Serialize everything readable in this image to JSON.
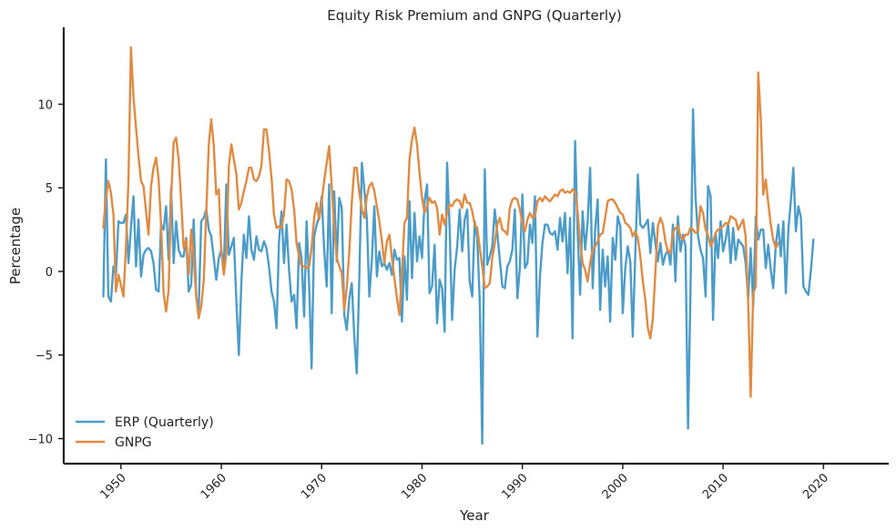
{
  "chart_data": {
    "type": "line",
    "title": "Equity Risk Premium and GNPG (Quarterly)",
    "xlabel": "Year",
    "ylabel": "Percentage",
    "xlim": [
      1944.3,
      2026.5
    ],
    "ylim": [
      -11.5,
      14.6
    ],
    "x_ticks": [
      1950,
      1960,
      1970,
      1980,
      1990,
      2000,
      2010,
      2020
    ],
    "y_ticks": [
      -10,
      -5,
      0,
      5,
      10
    ],
    "grid": false,
    "legend_position": "lower-left",
    "series": [
      {
        "name": "ERP (Quarterly)",
        "color": "#4c9cc9",
        "x_start": 1948.25,
        "x_step": 0.25,
        "values": [
          -1.5,
          6.7,
          -1.5,
          -1.8,
          0.3,
          -0.2,
          3,
          2.9,
          2.9,
          3.4,
          0.5,
          2.6,
          4.5,
          0.3,
          3.1,
          -0.3,
          1,
          1.3,
          1.4,
          1.2,
          0.5,
          -1.1,
          -1.2,
          2.8,
          2.5,
          3.9,
          0.7,
          5,
          0.5,
          3,
          1.3,
          0.9,
          0.9,
          2,
          -1.2,
          -0.8,
          3.1,
          -1.5,
          -2.3,
          3,
          3.2,
          3.7,
          2.5,
          2.1,
          0.8,
          -0.5,
          0.8,
          1.3,
          0.2,
          5.2,
          1,
          1.5,
          2,
          -1.8,
          -5,
          -0.6,
          2.2,
          0.8,
          3.3,
          1.3,
          0.7,
          2.1,
          1.3,
          1.2,
          1.8,
          1.4,
          0.3,
          -1.2,
          -1.8,
          -3.4,
          1.8,
          3.6,
          0.5,
          2.8,
          0.1,
          -1.8,
          -1.4,
          -3.4,
          1.7,
          0.8,
          -2.7,
          3,
          -0.8,
          -5.8,
          2.1,
          2.8,
          3.3,
          4.5,
          1.3,
          -0.9,
          5.2,
          -2.5,
          4.8,
          0.6,
          4.4,
          3.8,
          -2.6,
          -3.5,
          -1.6,
          -0.7,
          -3.9,
          -6.1,
          -0.4,
          6.5,
          4.9,
          3.1,
          -1.5,
          0.7,
          3.9,
          -0.3,
          1.2,
          0.3,
          0.5,
          0.1,
          0.5,
          -0.2,
          1.3,
          0.7,
          0.8,
          -3,
          0.9,
          -1.7,
          4.2,
          -0.4,
          3.5,
          0.6,
          2.1,
          0.8,
          4.2,
          5.2,
          -1.3,
          -0.9,
          1.6,
          -3.1,
          -0.5,
          -1,
          -3.6,
          6.5,
          2.6,
          -2.9,
          0.1,
          1.5,
          3.7,
          1.2,
          3.1,
          3.7,
          -0.6,
          -1.5,
          3,
          2,
          -1.8,
          -10.3,
          6.1,
          0.4,
          0.9,
          1.5,
          3.7,
          2.3,
          0.7,
          -0.9,
          -1,
          0.3,
          0.6,
          1.3,
          3.7,
          -1.6,
          0.2,
          4.6,
          0.2,
          0.5,
          2.8,
          1.7,
          4.5,
          -3.9,
          -0.3,
          1.7,
          2.8,
          2.8,
          2.3,
          2.2,
          2.4,
          1.3,
          3.2,
          1.8,
          3.5,
          -0.1,
          3.2,
          -4,
          7.8,
          2.5,
          -1.4,
          3.6,
          1.3,
          2.9,
          6.2,
          -1,
          2.5,
          4.3,
          -2.3,
          1.3,
          -0.9,
          0.9,
          -3,
          2,
          0.7,
          3.3,
          2.7,
          -2.5,
          0.2,
          1.5,
          0.6,
          -3.9,
          1.1,
          5.8,
          2.8,
          2.6,
          2.8,
          3.1,
          1.1,
          2.9,
          1.7,
          0.6,
          1.7,
          0.4,
          1,
          1.3,
          0.4,
          2.8,
          -0.6,
          3.3,
          1.2,
          2.2,
          1.5,
          -9.4,
          -1.2,
          9.7,
          4.5,
          2.1,
          1.3,
          0.8,
          -1.5,
          5.1,
          4.5,
          -2.9,
          2.3,
          0.8,
          3,
          1.2,
          1.9,
          2.9,
          0.5,
          2.6,
          0.7,
          1.9,
          1.7,
          1.5,
          0.5,
          -1.6,
          1.4,
          -2.1,
          3.3,
          1.9,
          2.5,
          2.5,
          0.2,
          1.6,
          0.1,
          -1,
          1.6,
          2.8,
          0.9,
          3,
          -1.3,
          2.5,
          4.2,
          6.2,
          2.4,
          3.9,
          3.2,
          -0.9,
          -1.2,
          -1.4,
          0.1,
          1.9
        ]
      },
      {
        "name": "GNPG",
        "color": "#e08a42",
        "x_start": 1948.25,
        "x_step": 0.25,
        "values": [
          2.6,
          4.4,
          5.4,
          4.7,
          3.4,
          -1.2,
          -0.2,
          -0.8,
          -1.5,
          1.4,
          5.5,
          13.4,
          10.4,
          8.6,
          6.9,
          5.4,
          5.1,
          3.6,
          2.2,
          5.1,
          6.2,
          6.8,
          5.5,
          2.8,
          -1.3,
          -2.4,
          -1.1,
          4.4,
          7.7,
          8,
          6.7,
          4.2,
          1.4,
          1.9,
          -0.2,
          2.5,
          0.8,
          -1.5,
          -2.8,
          -2.1,
          -0.5,
          3.5,
          7.6,
          9.1,
          7.5,
          4.6,
          4.9,
          1.2,
          -0.2,
          1.1,
          6.3,
          7.6,
          6.7,
          5.8,
          3.7,
          4.1,
          4.8,
          5.4,
          6.2,
          6.2,
          5.5,
          5.4,
          5.7,
          6.3,
          8.5,
          8.5,
          7.2,
          5.6,
          3.4,
          2.6,
          2.7,
          2.6,
          3.4,
          5.5,
          5.4,
          4.9,
          3.7,
          1.7,
          0.9,
          0.3,
          0.3,
          0.2,
          0.3,
          1.4,
          3.2,
          4.1,
          3.1,
          4.2,
          5.4,
          6.5,
          7.5,
          5.1,
          2.7,
          0.8,
          0.3,
          -0.1,
          -2.3,
          -1,
          1.2,
          4.1,
          6.2,
          6.2,
          4.7,
          3.7,
          3.2,
          4.5,
          5.1,
          5.3,
          4.8,
          3.9,
          3,
          1.8,
          0.5,
          1.8,
          2.2,
          0.8,
          -0.4,
          -1.6,
          -2.6,
          -0.1,
          2.9,
          3.2,
          6.7,
          7.9,
          8.6,
          7.6,
          5.9,
          4.4,
          3.5,
          3.9,
          4.4,
          4.1,
          4.2,
          3.8,
          2.2,
          3.4,
          2.8,
          3.5,
          4,
          3.9,
          4.2,
          4.3,
          4.2,
          3.8,
          4.6,
          4.1,
          4.1,
          3.6,
          2.8,
          2.6,
          1.4,
          0.3,
          -1,
          -0.9,
          -0.7,
          0.8,
          1.7,
          2.8,
          3.2,
          2.5,
          2.4,
          2.2,
          3.8,
          4.3,
          4.4,
          4.3,
          3.7,
          2.9,
          2.4,
          3.1,
          3.5,
          3.2,
          3.3,
          4.2,
          4.4,
          4.2,
          4.5,
          4.3,
          4.2,
          4.4,
          4.6,
          4.5,
          4.8,
          4.9,
          4.7,
          4.8,
          4.7,
          4.9,
          4.8,
          3.6,
          1.8,
          0.5,
          0.1,
          -0.6,
          0.5,
          1.3,
          1.5,
          1.8,
          2.2,
          2.3,
          3.2,
          4.2,
          4.3,
          4.3,
          4.1,
          3.8,
          3.5,
          3.4,
          2.9,
          2.8,
          2.6,
          2.1,
          2.4,
          2,
          0.9,
          -0.6,
          -1.7,
          -3.4,
          -4,
          -2.8,
          -0.1,
          2.7,
          3.2,
          2.8,
          1.8,
          1.2,
          1.1,
          2.3,
          2.6,
          2.7,
          2.1,
          1.9,
          2.2,
          2.2,
          2.6,
          2.5,
          2.3,
          2.4,
          3.9,
          3.5,
          2.5,
          2.2,
          1.5,
          1.8,
          2.3,
          2.5,
          2.6,
          2.7,
          2.9,
          2.8,
          3.3,
          3.2,
          3.1,
          2.5,
          2.8,
          3.1,
          2.1,
          -1.9,
          -7.5,
          -1.3,
          -0.9,
          11.9,
          9.1,
          4.6,
          5.5,
          4.1,
          2.8,
          1.9,
          1.4,
          1.7
        ]
      }
    ]
  }
}
